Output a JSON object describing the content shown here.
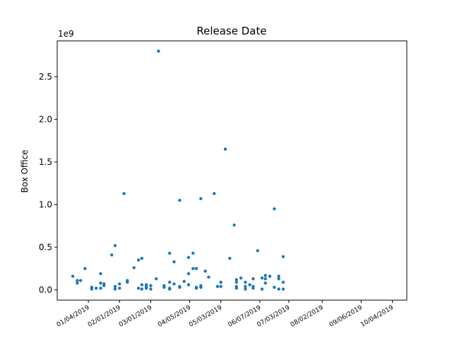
{
  "chart_data": {
    "type": "scatter",
    "title": "Release Date",
    "xlabel": "",
    "ylabel": "Box Office",
    "y_offset_text": "1e9",
    "y_ticks": [
      0.0,
      0.5,
      1.0,
      1.5,
      2.0,
      2.5
    ],
    "y_tick_labels": [
      "0.0",
      "0.5",
      "1.0",
      "1.5",
      "2.0",
      "2.5"
    ],
    "ylim": [
      -0.12,
      2.92
    ],
    "xlim": [
      "2018-12-07",
      "2019-10-17"
    ],
    "x_ticks": [
      "2019-01-04",
      "2019-02-01",
      "2019-03-01",
      "2019-04-05",
      "2019-05-03",
      "2019-06-07",
      "2019-07-03",
      "2019-08-02",
      "2019-09-06",
      "2019-10-04"
    ],
    "x_tick_labels": [
      "01/04/2019",
      "02/01/2019",
      "03/01/2019",
      "04/05/2019",
      "05/03/2019",
      "06/07/2019",
      "07/03/2019",
      "08/02/2019",
      "09/06/2019",
      "10/04/2019"
    ],
    "grid": false,
    "marker_color": "#1f77b4",
    "points": [
      [
        "2018-12-21",
        0.16
      ],
      [
        "2018-12-25",
        0.11
      ],
      [
        "2018-12-25",
        0.08
      ],
      [
        "2018-12-28",
        0.11
      ],
      [
        "2019-01-01",
        0.25
      ],
      [
        "2019-01-07",
        0.03
      ],
      [
        "2019-01-07",
        0.01
      ],
      [
        "2019-01-11",
        0.02
      ],
      [
        "2019-01-15",
        0.19
      ],
      [
        "2019-01-15",
        0.08
      ],
      [
        "2019-01-15",
        0.02
      ],
      [
        "2019-01-18",
        0.07
      ],
      [
        "2019-01-18",
        0.05
      ],
      [
        "2019-01-25",
        0.41
      ],
      [
        "2019-01-28",
        0.52
      ],
      [
        "2019-01-28",
        0.04
      ],
      [
        "2019-01-28",
        0.01
      ],
      [
        "2019-02-01",
        0.07
      ],
      [
        "2019-02-01",
        0.02
      ],
      [
        "2019-02-05",
        1.13
      ],
      [
        "2019-02-08",
        0.11
      ],
      [
        "2019-02-08",
        0.09
      ],
      [
        "2019-02-14",
        0.26
      ],
      [
        "2019-02-18",
        0.35
      ],
      [
        "2019-02-18",
        0.02
      ],
      [
        "2019-02-21",
        0.37
      ],
      [
        "2019-02-21",
        0.06
      ],
      [
        "2019-02-21",
        0.01
      ],
      [
        "2019-02-25",
        0.06
      ],
      [
        "2019-02-25",
        0.04
      ],
      [
        "2019-02-25",
        0.02
      ],
      [
        "2019-03-01",
        0.05
      ],
      [
        "2019-03-01",
        0.01
      ],
      [
        "2019-03-06",
        0.13
      ],
      [
        "2019-03-08",
        2.8
      ],
      [
        "2019-03-13",
        0.05
      ],
      [
        "2019-03-13",
        0.03
      ],
      [
        "2019-03-18",
        0.43
      ],
      [
        "2019-03-18",
        0.09
      ],
      [
        "2019-03-18",
        0.02
      ],
      [
        "2019-03-18",
        0.01
      ],
      [
        "2019-03-22",
        0.33
      ],
      [
        "2019-03-22",
        0.07
      ],
      [
        "2019-03-27",
        1.05
      ],
      [
        "2019-03-27",
        0.04
      ],
      [
        "2019-03-27",
        0.03
      ],
      [
        "2019-03-31",
        0.1
      ],
      [
        "2019-04-04",
        0.38
      ],
      [
        "2019-04-04",
        0.19
      ],
      [
        "2019-04-04",
        0.06
      ],
      [
        "2019-04-08",
        0.43
      ],
      [
        "2019-04-08",
        0.25
      ],
      [
        "2019-04-11",
        0.25
      ],
      [
        "2019-04-11",
        0.03
      ],
      [
        "2019-04-11",
        0.02
      ],
      [
        "2019-04-15",
        1.07
      ],
      [
        "2019-04-15",
        0.05
      ],
      [
        "2019-04-15",
        0.03
      ],
      [
        "2019-04-19",
        0.22
      ],
      [
        "2019-04-22",
        0.15
      ],
      [
        "2019-04-27",
        1.13
      ],
      [
        "2019-04-30",
        0.04
      ],
      [
        "2019-05-03",
        0.09
      ],
      [
        "2019-05-03",
        0.04
      ],
      [
        "2019-05-07",
        1.65
      ],
      [
        "2019-05-11",
        0.37
      ],
      [
        "2019-05-15",
        0.76
      ],
      [
        "2019-05-17",
        0.12
      ],
      [
        "2019-05-17",
        0.09
      ],
      [
        "2019-05-17",
        0.04
      ],
      [
        "2019-05-17",
        0.02
      ],
      [
        "2019-05-21",
        0.14
      ],
      [
        "2019-05-25",
        0.09
      ],
      [
        "2019-05-25",
        0.04
      ],
      [
        "2019-05-25",
        0.01
      ],
      [
        "2019-05-29",
        0.06
      ],
      [
        "2019-06-01",
        0.13
      ],
      [
        "2019-06-01",
        0.04
      ],
      [
        "2019-06-01",
        0.02
      ],
      [
        "2019-06-05",
        0.46
      ],
      [
        "2019-06-09",
        0.14
      ],
      [
        "2019-06-09",
        0.01
      ],
      [
        "2019-06-12",
        0.17
      ],
      [
        "2019-06-12",
        0.13
      ],
      [
        "2019-06-12",
        0.08
      ],
      [
        "2019-06-16",
        0.16
      ],
      [
        "2019-06-20",
        0.95
      ],
      [
        "2019-06-20",
        0.03
      ],
      [
        "2019-06-24",
        0.16
      ],
      [
        "2019-06-24",
        0.13
      ],
      [
        "2019-06-24",
        0.01
      ],
      [
        "2019-06-28",
        0.39
      ],
      [
        "2019-06-28",
        0.09
      ],
      [
        "2019-06-28",
        0.01
      ]
    ]
  }
}
